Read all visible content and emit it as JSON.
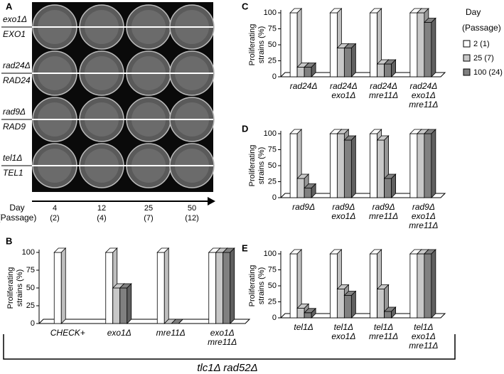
{
  "panel_a": {
    "label": "A",
    "rows": [
      {
        "top": "exo1Δ",
        "bottom": "EXO1"
      },
      {
        "top": "rad24Δ",
        "bottom": "RAD24"
      },
      {
        "top": "rad9Δ",
        "bottom": "RAD9"
      },
      {
        "top": "tel1Δ",
        "bottom": "TEL1"
      }
    ],
    "axis_title": [
      "Day",
      "(Passage)"
    ],
    "columns": [
      {
        "day": 4,
        "passage": "(2)"
      },
      {
        "day": 12,
        "passage": "(4)"
      },
      {
        "day": 25,
        "passage": "(7)"
      },
      {
        "day": 50,
        "passage": "(12)"
      }
    ]
  },
  "footer": "tlc1Δ rad52Δ",
  "chart_data": [
    {
      "type": "bar",
      "label": "B",
      "ylabel": [
        "Proliferating",
        "strains (%)"
      ],
      "categories": [
        [
          "CHECK+"
        ],
        [
          "exo1Δ"
        ],
        [
          "mre11Δ"
        ],
        [
          "exo1Δ",
          "mre11Δ"
        ]
      ],
      "series": [
        {
          "name": "2 (1)",
          "color": "#ffffff",
          "values": [
            100,
            100,
            100,
            100
          ]
        },
        {
          "name": "25 (7)",
          "color": "#c8c8c8",
          "values": [
            null,
            50,
            0,
            100
          ]
        },
        {
          "name": "100 (24)",
          "color": "#808080",
          "values": [
            null,
            50,
            0,
            100
          ]
        }
      ],
      "ylim": [
        0,
        100
      ],
      "yticks": [
        0,
        25,
        50,
        75,
        100
      ]
    },
    {
      "type": "bar",
      "label": "C",
      "ylabel": [
        "Proliferating",
        "strains (%)"
      ],
      "categories": [
        [
          "rad24Δ"
        ],
        [
          "rad24Δ",
          "exo1Δ"
        ],
        [
          "rad24Δ",
          "mre11Δ"
        ],
        [
          "rad24Δ",
          "exo1Δ",
          "mre11Δ"
        ]
      ],
      "series": [
        {
          "name": "2 (1)",
          "color": "#ffffff",
          "values": [
            100,
            100,
            100,
            100
          ]
        },
        {
          "name": "25 (7)",
          "color": "#c8c8c8",
          "values": [
            15,
            45,
            20,
            100
          ]
        },
        {
          "name": "100 (24)",
          "color": "#808080",
          "values": [
            15,
            45,
            20,
            85
          ]
        }
      ],
      "ylim": [
        0,
        100
      ],
      "yticks": [
        0,
        25,
        50,
        75,
        100
      ],
      "legend": true,
      "legend_title": [
        "Day",
        "(Passage)"
      ]
    },
    {
      "type": "bar",
      "label": "D",
      "ylabel": [
        "Proliferating",
        "strains (%)"
      ],
      "categories": [
        [
          "rad9Δ"
        ],
        [
          "rad9Δ",
          "exo1Δ"
        ],
        [
          "rad9Δ",
          "mre11Δ"
        ],
        [
          "rad9Δ",
          "exo1Δ",
          "mre11Δ"
        ]
      ],
      "series": [
        {
          "name": "2 (1)",
          "color": "#ffffff",
          "values": [
            100,
            100,
            100,
            100
          ]
        },
        {
          "name": "25 (7)",
          "color": "#c8c8c8",
          "values": [
            30,
            100,
            90,
            100
          ]
        },
        {
          "name": "100 (24)",
          "color": "#808080",
          "values": [
            15,
            90,
            30,
            100
          ]
        }
      ],
      "ylim": [
        0,
        100
      ],
      "yticks": [
        0,
        25,
        50,
        75,
        100
      ]
    },
    {
      "type": "bar",
      "label": "E",
      "ylabel": [
        "Proliferating",
        "strains (%)"
      ],
      "categories": [
        [
          "tel1Δ"
        ],
        [
          "tel1Δ",
          "exo1Δ"
        ],
        [
          "tel1Δ",
          "mre11Δ"
        ],
        [
          "tel1Δ",
          "exo1Δ",
          "mre11Δ"
        ]
      ],
      "series": [
        {
          "name": "2 (1)",
          "color": "#ffffff",
          "values": [
            100,
            100,
            100,
            100
          ]
        },
        {
          "name": "25 (7)",
          "color": "#c8c8c8",
          "values": [
            15,
            45,
            45,
            100
          ]
        },
        {
          "name": "100 (24)",
          "color": "#808080",
          "values": [
            8,
            35,
            10,
            100
          ]
        }
      ],
      "ylim": [
        0,
        100
      ],
      "yticks": [
        0,
        25,
        50,
        75,
        100
      ]
    }
  ]
}
